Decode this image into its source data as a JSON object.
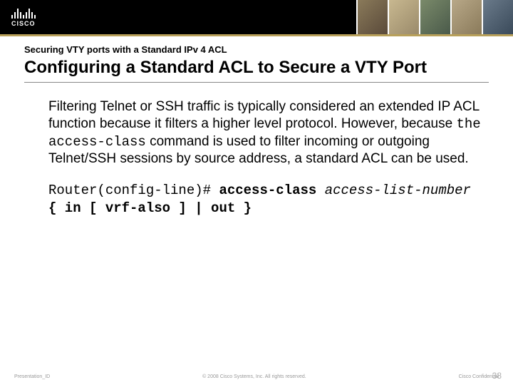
{
  "header": {
    "logo_text": "CISCO",
    "accent_color": "#b8a05a"
  },
  "slide": {
    "subtitle": "Securing VTY ports with a Standard IPv 4 ACL",
    "title": "Configuring a Standard ACL to Secure a VTY Port",
    "body_part1": "Filtering Telnet or SSH traffic is typically considered an extended IP ACL function because it filters a higher level protocol. However, because ",
    "body_mono": "the access-class",
    "body_part2": " command is used to filter incoming or outgoing Telnet/SSH sessions by source address, a standard ACL can be used.",
    "cmd_prompt": "Router(config-line)# ",
    "cmd_keyword": "access-class ",
    "cmd_arg": "access-list-number",
    "cmd_tail": " { in [ vrf-also ] | out }"
  },
  "footer": {
    "left": "Presentation_ID",
    "center": "© 2008 Cisco Systems, Inc. All rights reserved.",
    "right": "Cisco Confidential",
    "page": "38"
  },
  "colors": {
    "header_bg": "#000000",
    "page_bg": "#ffffff",
    "text": "#000000",
    "footer_text": "#999999",
    "page_num": "#b0b0b0",
    "divider": "#888888"
  }
}
